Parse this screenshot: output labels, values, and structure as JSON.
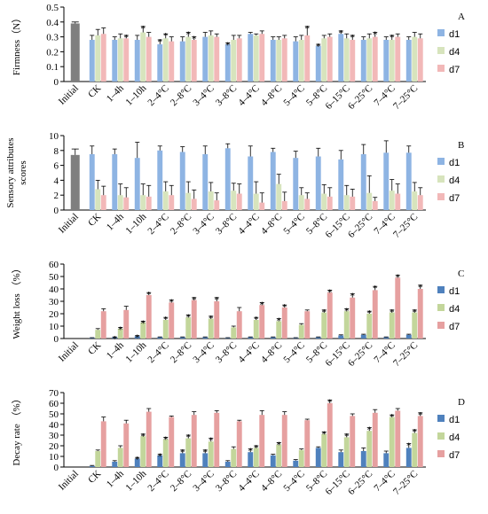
{
  "chart_data": [
    {
      "type": "bar",
      "letter": "A",
      "ylabel": [
        "Firmness（N）"
      ],
      "categories": [
        "Initial",
        "CK",
        "1–4h",
        "1–10h",
        "2–4°C",
        "2–8°C",
        "3–4°C",
        "3–8°C",
        "4–4°C",
        "4–8°C",
        "5–4°C",
        "5–8°C",
        "6–15°C",
        "6–25°C",
        "7–4°C",
        "7–25°C"
      ],
      "initial": {
        "value": 0.39,
        "error": 0.01,
        "color": "#7f7f7f"
      },
      "ylim": [
        0,
        0.5
      ],
      "yticks": [
        0,
        0.1,
        0.2,
        0.3,
        0.4,
        0.5
      ],
      "series": [
        {
          "name": "d1",
          "color": "#8eb4e3",
          "values": [
            null,
            0.28,
            0.28,
            0.28,
            0.25,
            0.27,
            0.3,
            0.25,
            0.32,
            0.28,
            0.27,
            0.24,
            0.32,
            0.28,
            0.28,
            0.28
          ],
          "errors": [
            null,
            0.03,
            0.02,
            0.03,
            0.03,
            0.03,
            0.03,
            0.01,
            0.01,
            0.02,
            0.03,
            0.01,
            0.02,
            0.02,
            0.02,
            0.02
          ],
          "labels": [
            null,
            null,
            null,
            null,
            "*",
            null,
            null,
            "*",
            null,
            null,
            null,
            "*",
            "*",
            null,
            null,
            null
          ]
        },
        {
          "name": "d4",
          "color": "#d7e4bd",
          "values": [
            null,
            0.31,
            0.29,
            0.33,
            0.29,
            0.3,
            0.31,
            0.28,
            0.31,
            0.28,
            0.28,
            0.29,
            0.29,
            0.29,
            0.28,
            0.3
          ],
          "errors": [
            null,
            0.04,
            0.03,
            0.04,
            0.03,
            0.03,
            0.03,
            0.03,
            0.01,
            0.02,
            0.03,
            0.02,
            0.03,
            0.03,
            0.03,
            0.03
          ],
          "labels": [
            null,
            null,
            null,
            "*",
            "*",
            "*",
            null,
            null,
            null,
            null,
            null,
            null,
            null,
            null,
            "*",
            null
          ]
        },
        {
          "name": "d7",
          "color": "#f2b8b8",
          "values": [
            null,
            0.32,
            0.29,
            0.3,
            0.27,
            0.28,
            0.3,
            0.29,
            0.32,
            0.29,
            0.31,
            0.3,
            0.28,
            0.3,
            0.3,
            0.29
          ],
          "errors": [
            null,
            0.04,
            0.02,
            0.03,
            0.03,
            0.02,
            0.02,
            0.02,
            0.02,
            0.02,
            0.06,
            0.02,
            0.03,
            0.03,
            0.02,
            0.03
          ],
          "labels": [
            null,
            null,
            "*",
            null,
            null,
            "*",
            null,
            null,
            null,
            null,
            "*",
            null,
            "*",
            "*",
            null,
            null
          ]
        }
      ]
    },
    {
      "type": "bar",
      "letter": "B",
      "ylabel": [
        "Sensory attributes",
        "scores"
      ],
      "categories": [
        "Initial",
        "CK",
        "1–4h",
        "1–10h",
        "2–4°C",
        "2–8°C",
        "3–4°C",
        "3–8°C",
        "4–4°C",
        "4–8°C",
        "5–4°C",
        "5–8°C",
        "6–15°C",
        "6–25°C",
        "7–4°C",
        "7–25°C"
      ],
      "initial": {
        "value": 7.4,
        "error": 0.8,
        "color": "#7f7f7f"
      },
      "ylim": [
        0,
        10
      ],
      "yticks": [
        0,
        2,
        4,
        6,
        8,
        10
      ],
      "series": [
        {
          "name": "d1",
          "color": "#8eb4e3",
          "values": [
            null,
            7.5,
            7.5,
            7,
            8,
            7.8,
            7.5,
            8.3,
            7.2,
            7.8,
            7,
            7.2,
            6.8,
            7.5,
            7.7,
            7.7
          ],
          "errors": [
            null,
            1.1,
            0.7,
            2.1,
            0.6,
            0.7,
            1.1,
            0.6,
            1.4,
            0.5,
            0.9,
            1.1,
            1.2,
            1.3,
            1.6,
            0.9
          ],
          "labels": [
            null,
            null,
            null,
            null,
            null,
            null,
            null,
            null,
            null,
            null,
            null,
            null,
            null,
            null,
            null,
            null
          ]
        },
        {
          "name": "d4",
          "color": "#d7e4bd",
          "values": [
            null,
            2.8,
            2,
            2,
            2.5,
            2.3,
            2.5,
            2.6,
            2.2,
            3.5,
            2,
            2.2,
            2,
            2.3,
            2.6,
            2.5
          ],
          "errors": [
            null,
            1.2,
            1.5,
            1.5,
            1.3,
            1.5,
            1.2,
            1,
            1.6,
            1.3,
            1,
            1.2,
            1.3,
            2.3,
            1.5,
            1.2
          ],
          "labels": [
            null,
            null,
            null,
            null,
            null,
            null,
            null,
            null,
            null,
            null,
            null,
            null,
            null,
            null,
            null,
            null
          ]
        },
        {
          "name": "d7",
          "color": "#f2b8b8",
          "values": [
            null,
            2,
            1.7,
            1.8,
            2,
            1.5,
            1.3,
            2.2,
            1,
            1.2,
            1.5,
            1.8,
            1.8,
            1.2,
            2.2,
            2
          ],
          "errors": [
            null,
            1.2,
            1.3,
            1.5,
            1.3,
            1.2,
            1,
            1.3,
            1.3,
            1.2,
            0.8,
            1.2,
            1,
            0.5,
            1.3,
            1
          ]
        }
      ]
    },
    {
      "type": "bar",
      "letter": "C",
      "ylabel": [
        "Weight loss （%）"
      ],
      "categories": [
        "Initial",
        "CK",
        "1–4h",
        "1–10h",
        "2–4°C",
        "2–8°C",
        "3–4°C",
        "3–8°C",
        "4–4°C",
        "4–8°C",
        "5–4°C",
        "5–8°C",
        "6–15°C",
        "6–25°C",
        "7–4°C",
        "7–25°C"
      ],
      "initial": {
        "value": 0,
        "error": 0,
        "color": "#7f7f7f"
      },
      "ylim": [
        0,
        60
      ],
      "yticks": [
        0,
        10,
        20,
        30,
        40,
        50,
        60
      ],
      "series": [
        {
          "name": "d1",
          "color": "#4f81bd",
          "values": [
            null,
            0.5,
            1,
            2,
            1,
            1,
            1,
            0.5,
            1,
            1,
            0.5,
            1,
            2.5,
            3,
            1,
            3
          ],
          "errors": [
            null,
            0.2,
            0.3,
            0.4,
            0.3,
            0.3,
            0.3,
            0.2,
            0.3,
            0.3,
            0.2,
            0.3,
            0.5,
            0.5,
            0.3,
            0.5
          ],
          "labels": [
            null,
            null,
            "*",
            "*",
            null,
            null,
            null,
            null,
            null,
            null,
            null,
            null,
            null,
            null,
            null,
            null
          ]
        },
        {
          "name": "d4",
          "color": "#c3d69b",
          "values": [
            null,
            7,
            8,
            13,
            15,
            17,
            16,
            9,
            15,
            14,
            11,
            21,
            22,
            20,
            21,
            21
          ],
          "errors": [
            null,
            1,
            1,
            1,
            2,
            2,
            2,
            1,
            2,
            2,
            1,
            2,
            2,
            2,
            2,
            2
          ],
          "labels": [
            null,
            null,
            "*",
            "*",
            "*",
            "*",
            "*",
            null,
            "*",
            "*",
            null,
            "*",
            "*",
            "*",
            "*",
            "*"
          ]
        },
        {
          "name": "d7",
          "color": "#e6a0a0",
          "values": [
            null,
            22,
            23,
            35,
            29,
            31,
            30,
            22,
            27,
            25,
            22,
            37,
            33,
            39,
            49,
            40
          ],
          "errors": [
            null,
            2,
            3,
            2,
            2,
            2,
            3,
            3,
            2,
            2,
            1,
            2,
            3,
            3,
            2,
            3
          ],
          "labels": [
            null,
            null,
            null,
            "*",
            "*",
            "*",
            "*",
            null,
            "*",
            "*",
            null,
            "*",
            "*",
            "*",
            "*",
            "*"
          ]
        }
      ]
    },
    {
      "type": "bar",
      "letter": "D",
      "ylabel": [
        "Decay rate （%）"
      ],
      "categories": [
        "Initial",
        "CK",
        "1–4h",
        "1–10h",
        "2–4°C",
        "2–8°C",
        "3–4°C",
        "3–8°C",
        "4–4°C",
        "4–8°C",
        "5–4°C",
        "5–8°C",
        "6–15°C",
        "6–25°C",
        "7–4°C",
        "7–25°C"
      ],
      "initial": {
        "value": 0,
        "error": 0,
        "color": "#7f7f7f"
      },
      "ylim": [
        0,
        70
      ],
      "yticks": [
        0,
        10,
        20,
        30,
        40,
        50,
        60,
        70
      ],
      "series": [
        {
          "name": "d1",
          "color": "#4f81bd",
          "values": [
            null,
            1,
            5,
            8,
            11,
            13,
            13,
            5,
            14,
            11,
            6,
            18,
            14,
            15,
            13,
            18
          ],
          "errors": [
            null,
            0.5,
            1,
            1,
            1,
            3,
            3,
            1,
            3,
            1,
            1,
            1,
            2,
            3,
            2,
            4
          ],
          "labels": [
            null,
            null,
            null,
            "*",
            "*",
            "*",
            "*",
            null,
            "*",
            null,
            null,
            null,
            null,
            null,
            null,
            "*"
          ]
        },
        {
          "name": "d4",
          "color": "#c3d69b",
          "values": [
            null,
            15,
            18,
            29,
            26,
            27,
            24,
            17,
            18,
            21,
            16,
            31,
            28,
            34,
            47,
            32
          ],
          "errors": [
            null,
            1,
            2,
            2,
            2,
            3,
            3,
            2,
            2,
            2,
            1,
            2,
            3,
            3,
            2,
            3
          ],
          "labels": [
            null,
            null,
            null,
            "*",
            "*",
            "*",
            "*",
            null,
            "*",
            "*",
            null,
            "*",
            "*",
            "*",
            "*",
            "*"
          ]
        },
        {
          "name": "d7",
          "color": "#e6a0a0",
          "values": [
            null,
            43,
            41,
            52,
            47,
            49,
            51,
            43,
            49,
            49,
            44,
            60,
            48,
            51,
            53,
            48
          ],
          "errors": [
            null,
            4,
            3,
            3,
            1,
            3,
            2,
            1,
            4,
            3,
            1,
            3,
            2,
            3,
            2,
            3
          ],
          "labels": [
            null,
            null,
            null,
            null,
            null,
            null,
            null,
            null,
            null,
            null,
            null,
            "*",
            null,
            null,
            null,
            "*"
          ]
        }
      ]
    }
  ]
}
